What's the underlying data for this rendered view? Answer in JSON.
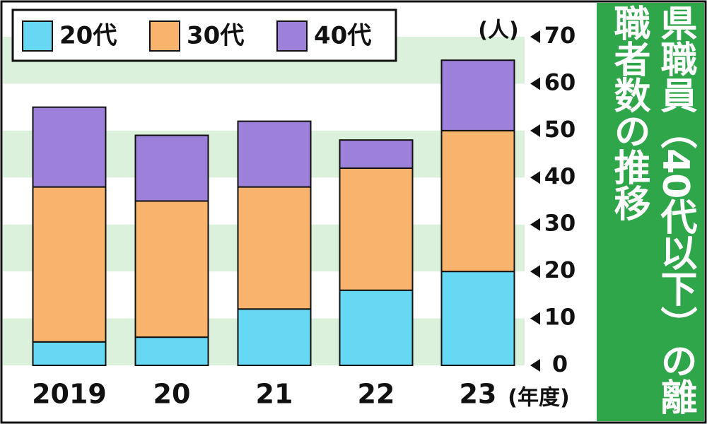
{
  "chart_data": {
    "type": "stacked_bar",
    "title": "県職員（40代以下）の離職者数の推移",
    "y_unit": "(人)",
    "x_unit": "(年度)",
    "categories": [
      "2019",
      "20",
      "21",
      "22",
      "23"
    ],
    "series": [
      {
        "name": "20代",
        "color": "#66d8f4",
        "values": [
          5,
          6,
          12,
          16,
          20
        ]
      },
      {
        "name": "30代",
        "color": "#f8b46c",
        "values": [
          33,
          29,
          26,
          26,
          30
        ]
      },
      {
        "name": "40代",
        "color": "#9c80da",
        "values": [
          17,
          14,
          14,
          6,
          15
        ]
      }
    ],
    "ylim": [
      0,
      70
    ],
    "yticks": [
      0,
      10,
      20,
      30,
      40,
      50,
      60,
      70
    ],
    "stripe_color": "#dcf1dc",
    "panel_color": "#2fa64a"
  }
}
